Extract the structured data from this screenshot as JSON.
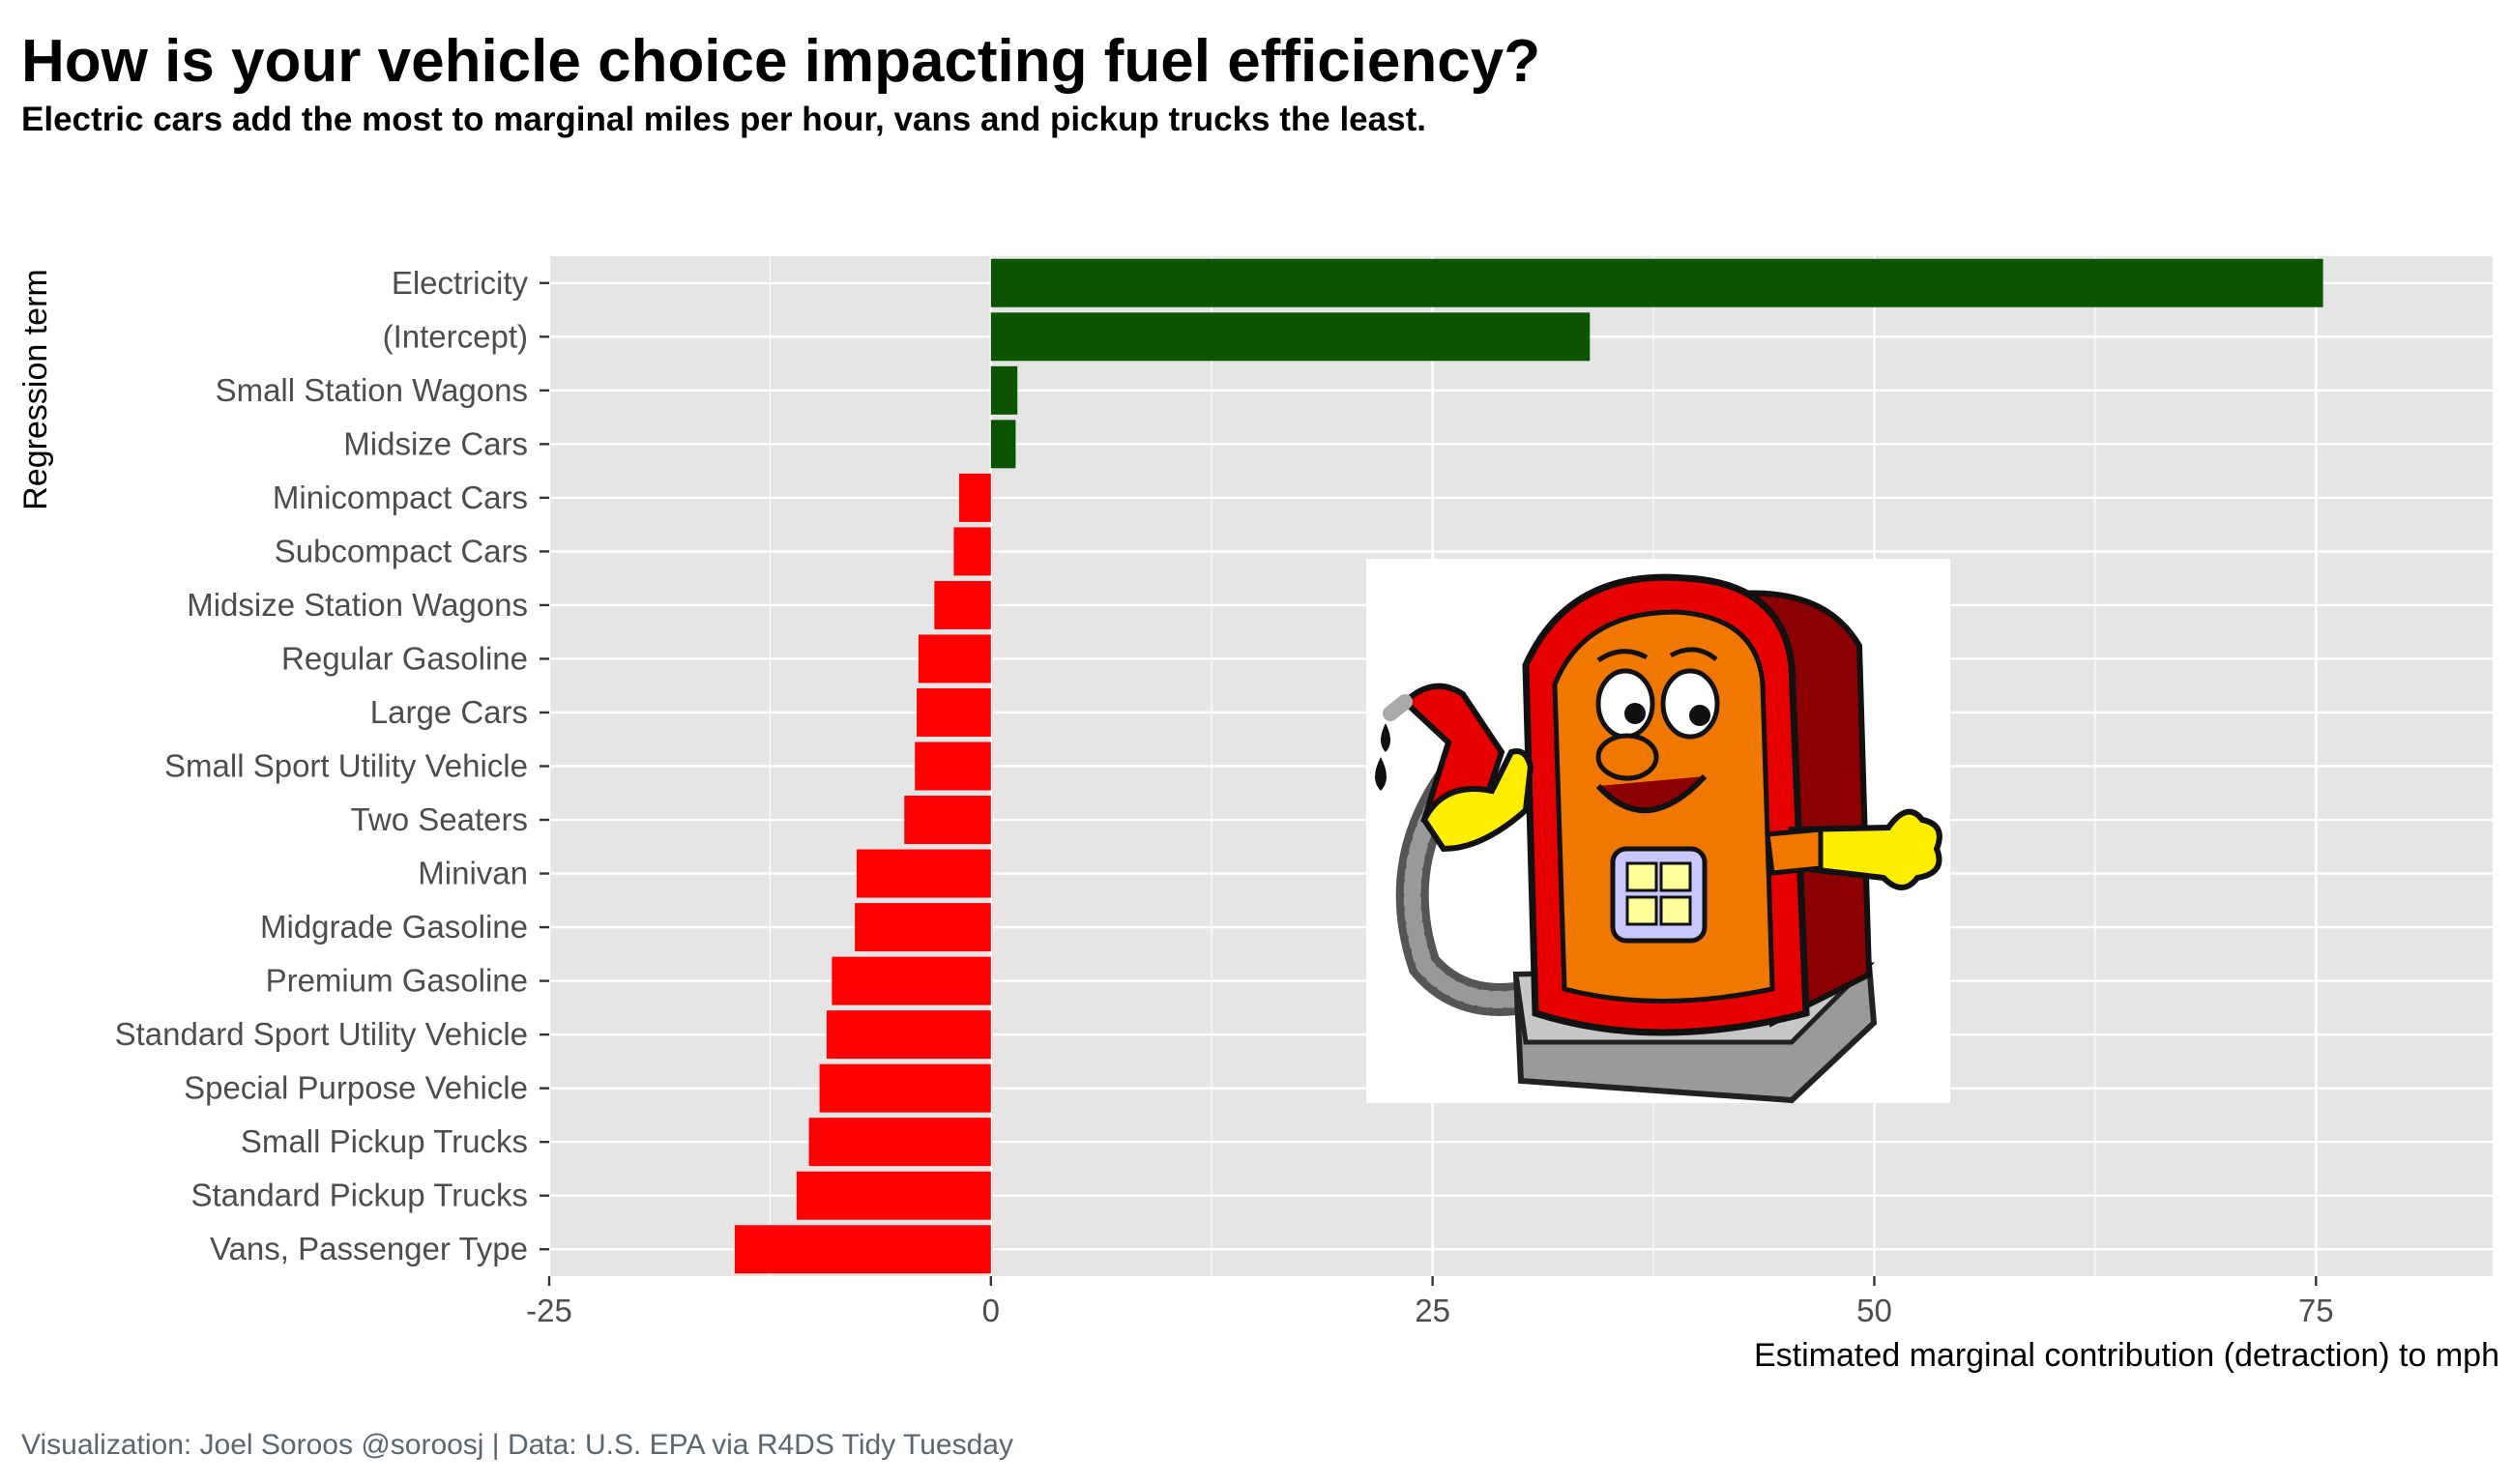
{
  "title": "How is your vehicle choice impacting fuel efficiency?",
  "subtitle": "Electric cars add the most to marginal miles per hour, vans and pickup trucks the least.",
  "caption": "Visualization: Joel Soroos @soroosj  |  Data: U.S. EPA via R4DS Tidy Tuesday",
  "colors": {
    "positive": "#0b5500",
    "negative": "#ff0000",
    "panel": "#e5e5e5",
    "grid": "#ffffff"
  },
  "image": {
    "icon": "cartoon-gas-pump-icon"
  },
  "chart_data": {
    "type": "bar",
    "orientation": "horizontal",
    "xlabel": "Estimated marginal contribution (detraction) to mph",
    "ylabel": "Regression term",
    "xlim": [
      -25,
      85
    ],
    "xticks": [
      -25,
      0,
      25,
      50,
      75
    ],
    "grid": true,
    "categories": [
      "Electricity",
      "(Intercept)",
      "Small Station Wagons",
      "Midsize Cars",
      "Minicompact Cars",
      "Subcompact Cars",
      "Midsize Station Wagons",
      "Regular Gasoline",
      "Large Cars",
      "Small Sport Utility Vehicle",
      "Two Seaters",
      "Minivan",
      "Midgrade Gasoline",
      "Premium Gasoline",
      "Standard Sport Utility Vehicle",
      "Special Purpose Vehicle",
      "Small Pickup Trucks",
      "Standard Pickup Trucks",
      "Vans, Passenger Type"
    ],
    "values": [
      75.4,
      33.9,
      1.5,
      1.4,
      -1.8,
      -2.1,
      -3.2,
      -4.1,
      -4.2,
      -4.3,
      -4.9,
      -7.6,
      -7.7,
      -9.0,
      -9.3,
      -9.7,
      -10.3,
      -11.0,
      -14.5
    ]
  }
}
